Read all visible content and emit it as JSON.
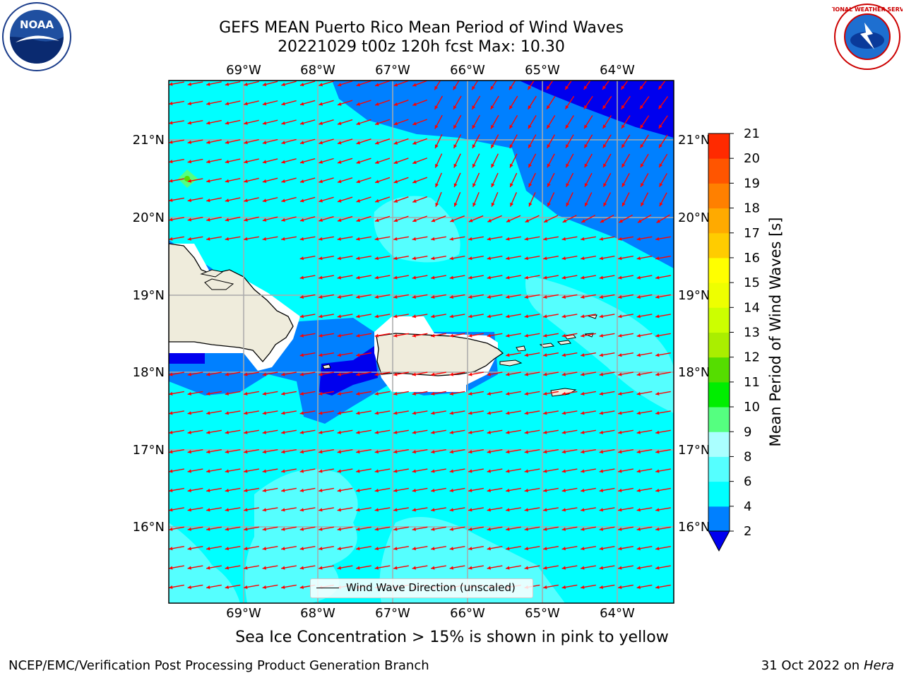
{
  "title": {
    "line1": "GEFS MEAN Puerto Rico Mean Period of Wind Waves",
    "line2": "20221029 t00z 120h fcst   Max: 10.30"
  },
  "map": {
    "lon_labels": [
      "69°W",
      "68°W",
      "67°W",
      "66°W",
      "65°W",
      "64°W"
    ],
    "lat_labels": [
      "21°N",
      "20°N",
      "19°N",
      "18°N",
      "17°N",
      "16°N"
    ],
    "legend_label": "Wind Wave Direction (unscaled)",
    "arrow_color": "#ff0000",
    "land_color": "#efecdc",
    "colors": {
      "band_2_4": "#0080ff",
      "band_4_6": "#00ffff",
      "band_6_8": "#55ffff",
      "band_lt_2": "#0000ee"
    }
  },
  "colorbar": {
    "label": "Mean Period of Wind Waves [s]",
    "ticks": [
      "2",
      "4",
      "6",
      "8",
      "9",
      "10",
      "11",
      "12",
      "13",
      "14",
      "15",
      "16",
      "17",
      "18",
      "19",
      "20",
      "21"
    ],
    "colors": [
      "#0080ff",
      "#00ffff",
      "#55ffff",
      "#aaffff",
      "#55ff80",
      "#00ee00",
      "#55dd00",
      "#aaee00",
      "#ccff00",
      "#eeff00",
      "#ffff00",
      "#ffcc00",
      "#ffaa00",
      "#ff8000",
      "#ff5500",
      "#ff2a00",
      "#ff0000"
    ],
    "under_color": "#0000ee"
  },
  "footer": {
    "caption": "Sea Ice Concentration > 15% is shown in pink to yellow",
    "left": "NCEP/EMC/Verification Post Processing Product Generation Branch",
    "right_date": "31 Oct 2022 on",
    "right_machine": "Hera"
  },
  "logos": {
    "noaa_text": "NOAA",
    "nws_text": "NATIONAL WEATHER SERVICE"
  }
}
